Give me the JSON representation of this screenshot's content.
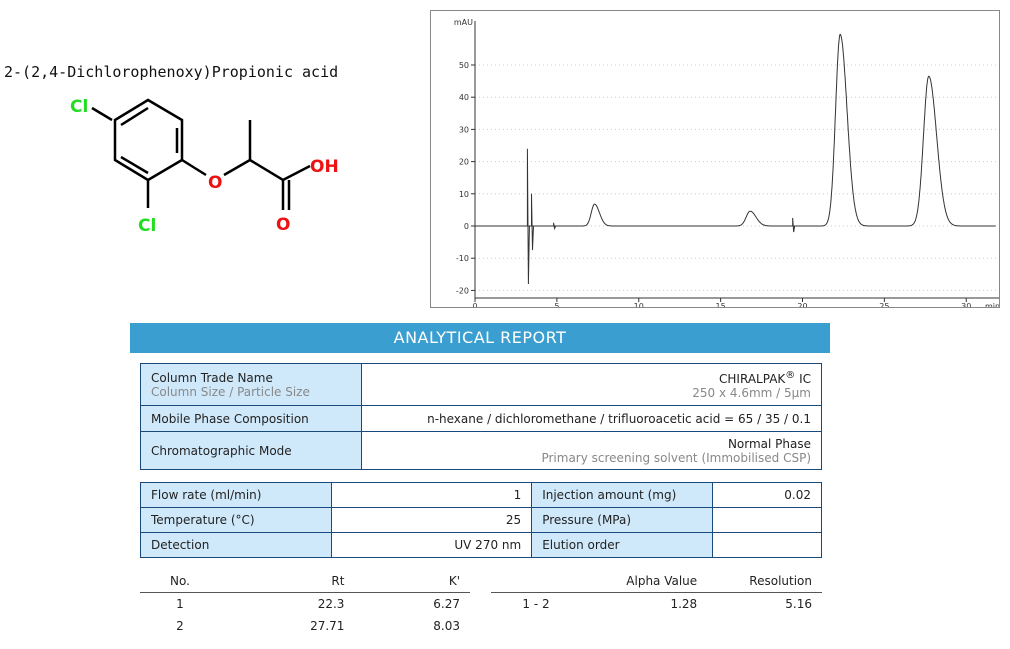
{
  "compound": {
    "name": "2-(2,4-Dichlorophenoxy)Propionic acid",
    "atoms": {
      "cl1": "Cl",
      "cl2": "Cl",
      "o_ether": "O",
      "oh": "OH",
      "o_carbonyl": "O"
    },
    "colors": {
      "chlorine": "#22dd22",
      "oxygen": "#ee1111",
      "bond": "#000000"
    }
  },
  "chart_data": {
    "type": "line",
    "ylabel": "mAU",
    "xlabel": "min",
    "xlim": [
      0,
      32
    ],
    "ylim": [
      -22,
      62
    ],
    "xticks": [
      0,
      5,
      10,
      15,
      20,
      25,
      30
    ],
    "yticks": [
      -20,
      -10,
      0,
      10,
      20,
      30,
      40,
      50
    ],
    "grid": true,
    "color": "#333333",
    "peaks": [
      {
        "rt": 3.2,
        "height": 24,
        "type": "spike"
      },
      {
        "rt": 3.45,
        "height": 10,
        "type": "spike"
      },
      {
        "rt": 4.8,
        "height": 1,
        "type": "spike"
      },
      {
        "rt": 7.3,
        "height": 6.8,
        "width": 0.25
      },
      {
        "rt": 16.8,
        "height": 4.6,
        "width": 0.3
      },
      {
        "rt": 19.4,
        "height": 2.5,
        "type": "spike"
      },
      {
        "rt": 22.3,
        "height": 59.5,
        "width": 0.35
      },
      {
        "rt": 27.71,
        "height": 46.5,
        "width": 0.4
      }
    ]
  },
  "report": {
    "banner": "ANALYTICAL REPORT",
    "column_label": "Column Trade Name",
    "column_sublabel": "Column Size / Particle Size",
    "column_value": "CHIRALPAK",
    "column_reg": "®",
    "column_suffix": " IC",
    "column_size": "250 x 4.6mm / 5µm",
    "mobile_label": "Mobile Phase Composition",
    "mobile_value": "n-hexane / dichloromethane / trifluoroacetic acid = 65 / 35 / 0.1",
    "mode_label": "Chromatographic Mode",
    "mode_value": "Normal Phase",
    "mode_sub": "Primary screening solvent (Immobilised CSP)",
    "flow_label": "Flow rate (ml/min)",
    "flow_value": "1",
    "inj_label": "Injection amount (mg)",
    "inj_value": "0.02",
    "temp_label": "Temperature (°C)",
    "temp_value": "25",
    "pressure_label": "Pressure (MPa)",
    "pressure_value": "",
    "det_label": "Detection",
    "det_value": "UV 270 nm",
    "elution_label": "Elution order",
    "elution_value": ""
  },
  "results": {
    "headers": [
      "No.",
      "Rt",
      "K'"
    ],
    "rows": [
      [
        "1",
        "22.3",
        "6.27"
      ],
      [
        "2",
        "27.71",
        "8.03"
      ]
    ],
    "sel_headers": [
      "",
      "Alpha Value",
      "Resolution"
    ],
    "sel_rows": [
      [
        "1 - 2",
        "1.28",
        "5.16"
      ]
    ]
  }
}
